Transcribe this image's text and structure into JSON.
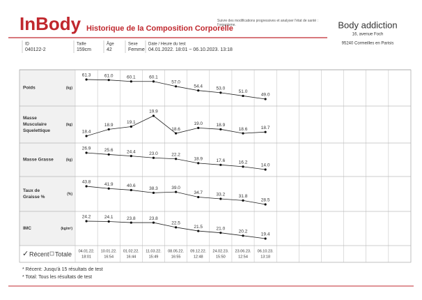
{
  "header": {
    "logo": "InBody",
    "title": "Historique de la Composition Corporelle",
    "description": "Suivre des modifications progressives et analyser l'état de santé : l'organisme.",
    "clinic_name": "Body addiction",
    "clinic_address": "16, avenue Foch",
    "clinic_city": "95240 Cormeilles en Parisis"
  },
  "info": [
    {
      "label": "ID",
      "value": "040122-2"
    },
    {
      "label": "Taille",
      "value": "159cm"
    },
    {
      "label": "Âge",
      "value": "42"
    },
    {
      "label": "Sexe",
      "value": "Femme"
    },
    {
      "label": "Date / Heure du test",
      "value": "04.01.2022. 18:01 ~ 06.10.2023. 13:18"
    }
  ],
  "history": {
    "dates": [
      {
        "date": "04.01.22.",
        "time": "18:01"
      },
      {
        "date": "10.01.22.",
        "time": "16:54"
      },
      {
        "date": "01.02.22.",
        "time": "16:44"
      },
      {
        "date": "11.03.22.",
        "time": "15:49"
      },
      {
        "date": "08.05.22.",
        "time": "16:55"
      },
      {
        "date": "09.12.22.",
        "time": "12:48"
      },
      {
        "date": "24.02.23.",
        "time": "15:50"
      },
      {
        "date": "23.06.23.",
        "time": "12:54"
      },
      {
        "date": "06.10.23.",
        "time": "13:18"
      }
    ],
    "rows": [
      {
        "name": [
          "Poids"
        ],
        "unit": "(kg)",
        "values": [
          61.3,
          61,
          60.1,
          60.1,
          57,
          54.4,
          53,
          51,
          49
        ],
        "value_labels": [
          "61.3",
          "61.0",
          "60.1",
          "60.1",
          "57.0",
          "54.4",
          "53.0",
          "51.0",
          "49.0"
        ]
      },
      {
        "name": [
          "Masse",
          "Musculaire",
          "Squelettique"
        ],
        "unit": "(kg)",
        "values": [
          18.4,
          18.9,
          19.1,
          19.9,
          18.6,
          19,
          18.9,
          18.6,
          18.7
        ],
        "value_labels": [
          "18.4",
          "18.9",
          "19.1",
          "19.9",
          "18.6",
          "19.0",
          "18.9",
          "18.6",
          "18.7"
        ]
      },
      {
        "name": [
          "Masse Grasse"
        ],
        "unit": "(kg)",
        "values": [
          26.9,
          25.6,
          24.4,
          23,
          22.2,
          18.9,
          17.6,
          16.2,
          14
        ],
        "value_labels": [
          "26.9",
          "25.6",
          "24.4",
          "23.0",
          "22.2",
          "18.9",
          "17.6",
          "16.2",
          "14.0"
        ]
      },
      {
        "name": [
          "Taux de",
          "Graisse %"
        ],
        "unit": "(%)",
        "values": [
          43.8,
          41.9,
          40.6,
          38.3,
          39,
          34.7,
          33.2,
          31.8,
          28.5
        ],
        "value_labels": [
          "43.8",
          "41.9",
          "40.6",
          "38.3",
          "39.0",
          "34.7",
          "33.2",
          "31.8",
          "28.5"
        ]
      },
      {
        "name": [
          "IMC"
        ],
        "unit": "(kg/m²)",
        "values": [
          24.2,
          24.1,
          23.8,
          23.8,
          22.5,
          21.5,
          21,
          20.2,
          19.4
        ],
        "value_labels": [
          "24.2",
          "24.1",
          "23.8",
          "23.8",
          "22.5",
          "21.5",
          "21.0",
          "20.2",
          "19.4"
        ]
      }
    ]
  },
  "legend": {
    "recent": "Récent",
    "total": "Totale"
  },
  "notes": [
    "* Récent: Jusqu'à 15 résultats de test",
    "* Total: Tous les résultats de test"
  ]
}
